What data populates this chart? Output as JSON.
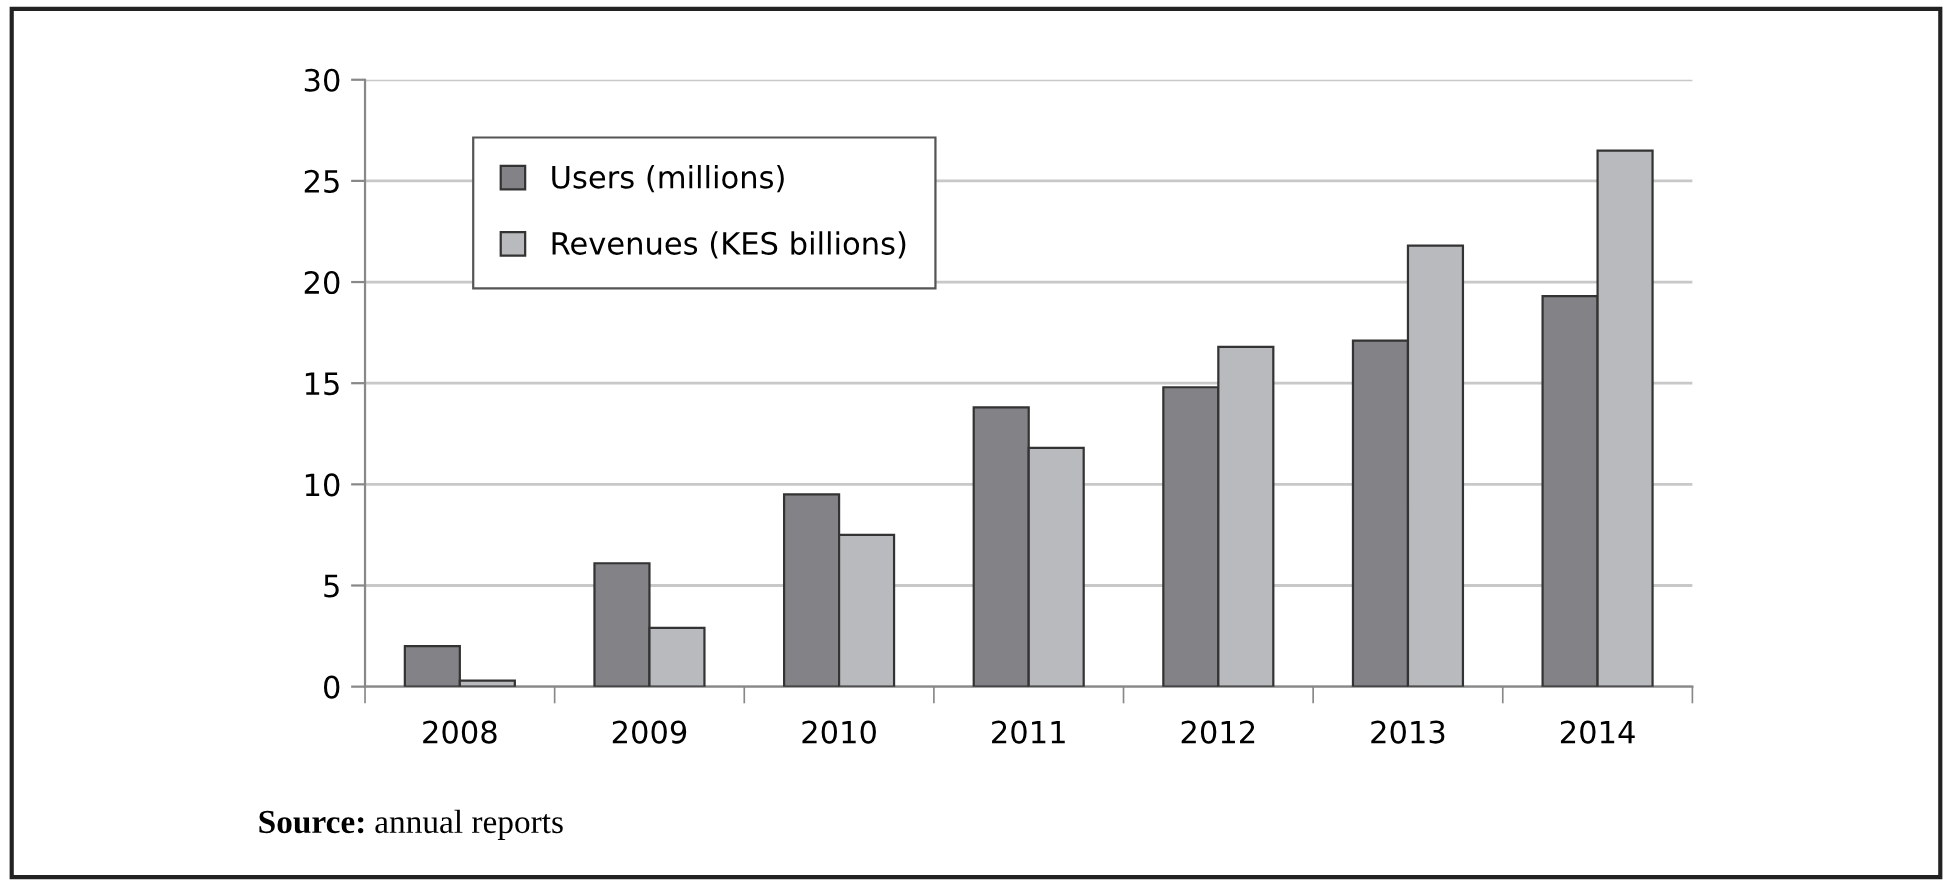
{
  "chart_data": {
    "type": "bar",
    "categories": [
      "2008",
      "2009",
      "2010",
      "2011",
      "2012",
      "2013",
      "2014"
    ],
    "series": [
      {
        "name": "Users (millions)",
        "color": "#838387",
        "values": [
          2.0,
          6.1,
          9.5,
          13.8,
          14.8,
          17.1,
          19.3
        ]
      },
      {
        "name": "Revenues (KES billions)",
        "color": "#b9babd",
        "values": [
          0.3,
          2.9,
          7.5,
          11.8,
          16.8,
          21.8,
          26.5
        ]
      }
    ],
    "ylim": [
      0,
      30
    ],
    "yticks": [
      0,
      5,
      10,
      15,
      20,
      25,
      30
    ],
    "grid": "y",
    "legend": "top left",
    "annotations": [
      "Source: annual reports"
    ]
  }
}
